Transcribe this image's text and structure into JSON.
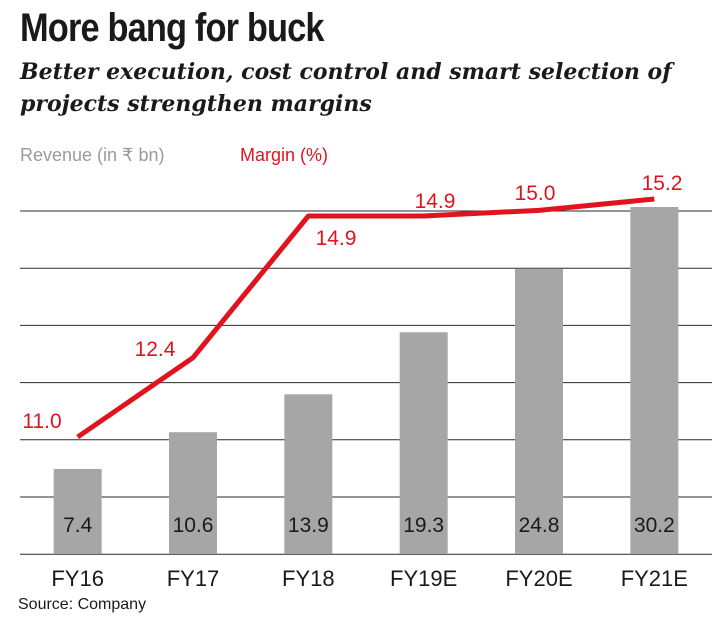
{
  "header": {
    "title": "More bang for buck",
    "subtitle": "Better execution, cost control and smart selection of projects strengthen margins"
  },
  "legend": {
    "revenue": "Revenue (in ₹ bn)",
    "margin": "Margin (%)"
  },
  "footer": {
    "source": "Source: Company"
  },
  "colors": {
    "bar": "#a6a6a6",
    "line": "#e0141e",
    "grid": "#2a2a2a"
  },
  "chart_data": {
    "type": "bar",
    "categories": [
      "FY16",
      "FY17",
      "FY18",
      "FY19E",
      "FY20E",
      "FY21E"
    ],
    "series": [
      {
        "name": "Revenue (in ₹ bn)",
        "type": "bar",
        "values": [
          7.4,
          10.6,
          13.9,
          19.3,
          24.8,
          30.2
        ]
      },
      {
        "name": "Margin (%)",
        "type": "line",
        "values": [
          11.0,
          12.4,
          14.9,
          14.9,
          15.0,
          15.2
        ]
      }
    ],
    "value_labels": {
      "revenue": [
        "7.4",
        "10.6",
        "13.9",
        "19.3",
        "24.8",
        "30.2"
      ],
      "margin": [
        "11.0",
        "12.4",
        "14.9",
        "14.9",
        "15.0",
        "15.2"
      ]
    },
    "grid": true
  }
}
